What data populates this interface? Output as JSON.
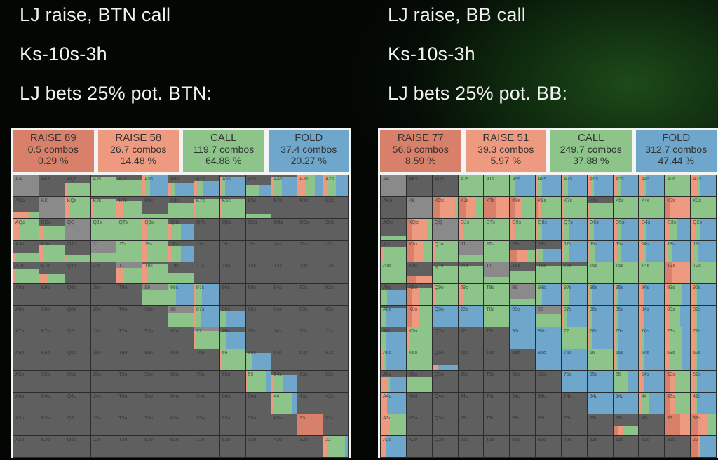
{
  "colors": {
    "raise_big": "#d9806a",
    "raise_small": "#ee9a80",
    "call": "#8cc48a",
    "fold": "#6fa6cc",
    "empty": "#5f5f5f",
    "pair": "#8a8a8a"
  },
  "left": {
    "title1": "LJ raise, BTN call",
    "title2": "Ks-10s-3h",
    "title3": "LJ bets 25% pot. BTN:",
    "legend": [
      {
        "name": "RAISE 89",
        "combos": "0.5 combos",
        "pct": "0.29 %",
        "color": "#d9806a"
      },
      {
        "name": "RAISE 58",
        "combos": "26.7 combos",
        "pct": "14.48 %",
        "color": "#ee9a80"
      },
      {
        "name": "CALL",
        "combos": "119.7 combos",
        "pct": "64.88 %",
        "color": "#8cc48a"
      },
      {
        "name": "FOLD",
        "combos": "37.4 combos",
        "pct": "20.27 %",
        "color": "#6fa6cc"
      }
    ]
  },
  "right": {
    "title1": "LJ raise, BB call",
    "title2": "Ks-10s-3h",
    "title3": "LJ bets 25% pot. BB:",
    "legend": [
      {
        "name": "RAISE 77",
        "combos": "56.6 combos",
        "pct": "8.59 %",
        "color": "#d9806a"
      },
      {
        "name": "RAISE 51",
        "combos": "39.3 combos",
        "pct": "5.97 %",
        "color": "#ee9a80"
      },
      {
        "name": "CALL",
        "combos": "249.7 combos",
        "pct": "37.88 %",
        "color": "#8cc48a"
      },
      {
        "name": "FOLD",
        "combos": "312.7 combos",
        "pct": "47.44 %",
        "color": "#6fa6cc"
      }
    ]
  },
  "ranks": [
    "A",
    "K",
    "Q",
    "J",
    "T",
    "9",
    "8",
    "7",
    "6",
    "5",
    "4",
    "3",
    "2"
  ],
  "cells": {
    "left": {
      "AKs": [
        0,
        0,
        0,
        0,
        0
      ],
      "AQs": [
        0.65,
        0,
        0.08,
        0.92,
        0
      ],
      "AJs": [
        0.9,
        0,
        0,
        1,
        0
      ],
      "ATs": [
        0.8,
        0,
        0,
        1,
        0
      ],
      "A9s": [
        1,
        0,
        0.1,
        0.2,
        0.7
      ],
      "A8s": [
        0.65,
        0,
        0.1,
        0.15,
        0.75
      ],
      "A7s": [
        0.75,
        0,
        0.1,
        0.25,
        0.65
      ],
      "A6s": [
        0.9,
        0,
        0.1,
        0.1,
        0.8
      ],
      "A5s": [
        0.55,
        0,
        0,
        0.5,
        0.5
      ],
      "A4s": [
        0.9,
        0,
        0.1,
        0.3,
        0.6
      ],
      "A3s": [
        1,
        0,
        0.3,
        0.4,
        0.3
      ],
      "A2s": [
        1,
        0,
        0.2,
        0.3,
        0.5
      ],
      "AKo": [
        0.3,
        0,
        0.6,
        0.4,
        0
      ],
      "KQs": [
        1,
        0,
        0.2,
        0.8,
        0
      ],
      "KJs": [
        0.9,
        0,
        0.1,
        0.9,
        0
      ],
      "KTs": [
        0.85,
        0,
        0.25,
        0.75,
        0
      ],
      "K9s": [
        0.2,
        0,
        0,
        1,
        0
      ],
      "K8s": [
        0.75,
        0,
        0,
        1,
        0
      ],
      "K7s": [
        0.9,
        0,
        0.05,
        0.95,
        0
      ],
      "K6s": [
        0.9,
        0,
        0.05,
        0.95,
        0
      ],
      "K5s": [
        0.2,
        0,
        0,
        1,
        0
      ],
      "AQo": [
        1,
        0,
        0.25,
        0.75,
        0
      ],
      "KQo": [
        0.65,
        0,
        0.2,
        0.8,
        0
      ],
      "QJs": [
        1,
        0,
        0.05,
        0.95,
        0
      ],
      "QTs": [
        1,
        0,
        0,
        1,
        0
      ],
      "Q9s": [
        1,
        0,
        0.2,
        0.8,
        0
      ],
      "Q8s": [
        0.75,
        0,
        0.1,
        0.4,
        0.5
      ],
      "AJo": [
        0.4,
        0,
        0.1,
        0.9,
        0
      ],
      "KJo": [
        0.8,
        0,
        0.15,
        0.85,
        0
      ],
      "QJo": [
        0.3,
        0,
        0.1,
        0.9,
        0
      ],
      "JJ": [
        0.4,
        0,
        0,
        1,
        0
      ],
      "JTs": [
        1,
        0,
        0,
        1,
        0
      ],
      "J9s": [
        1,
        0,
        0.2,
        0.8,
        0
      ],
      "J8s": [
        0.75,
        0,
        0.1,
        0.4,
        0.5
      ],
      "ATo": [
        0.7,
        0,
        0.05,
        0.95,
        0
      ],
      "KTo": [
        0.45,
        0,
        0.3,
        0.7,
        0
      ],
      "TT": [
        0.75,
        0,
        0.3,
        0.7,
        0
      ],
      "T9s": [
        0.9,
        0,
        0.15,
        0.85,
        0
      ],
      "T8s": [
        0.5,
        0,
        0,
        1,
        0
      ],
      "99": [
        0.75,
        0,
        0,
        1,
        0
      ],
      "98s": [
        1,
        0,
        0,
        0.3,
        0.7
      ],
      "97s": [
        1,
        0,
        0.05,
        0.25,
        0.7
      ],
      "88": [
        0.65,
        0,
        0,
        1,
        0
      ],
      "87s": [
        1,
        0,
        0.05,
        0.2,
        0.75
      ],
      "86s": [
        0.75,
        0,
        0,
        0.25,
        0.75
      ],
      "77": [
        0.85,
        0,
        0.08,
        0.92,
        0
      ],
      "76s": [
        0.8,
        0,
        0,
        0.25,
        0.75
      ],
      "66": [
        1,
        0,
        0.08,
        0.92,
        0
      ],
      "65s": [
        0.8,
        0,
        0,
        0.25,
        0.75
      ],
      "55": [
        1,
        0,
        0.05,
        0.75,
        0.2
      ],
      "54s": [
        0.8,
        0,
        0.1,
        0.35,
        0.55
      ],
      "44": [
        1,
        0,
        0.05,
        0.75,
        0.2
      ],
      "33": [
        1,
        1,
        0,
        0,
        0
      ],
      "22": [
        1,
        0,
        0.15,
        0.7,
        0.15
      ]
    },
    "right": {
      "AJs": [
        1,
        0,
        0,
        1,
        0
      ],
      "ATs": [
        1,
        0,
        0,
        1,
        0
      ],
      "A9s": [
        1,
        0,
        0,
        0.2,
        0.8
      ],
      "A8s": [
        1,
        0,
        0.1,
        0.15,
        0.75
      ],
      "A7s": [
        1,
        0,
        0.1,
        0.15,
        0.75
      ],
      "A6s": [
        1,
        0,
        0.15,
        0.1,
        0.75
      ],
      "A5s": [
        1,
        0,
        0.2,
        0.1,
        0.7
      ],
      "A4s": [
        1,
        0,
        0.2,
        0.1,
        0.7
      ],
      "A3s": [
        1,
        0,
        0,
        1,
        0
      ],
      "A2s": [
        1,
        0,
        0.25,
        0.15,
        0.6
      ],
      "KQs": [
        1,
        0.3,
        0.6,
        0.1,
        0
      ],
      "KJs": [
        1,
        0.3,
        0.4,
        0.3,
        0
      ],
      "KTs": [
        1,
        0.5,
        0.5,
        0,
        0
      ],
      "K9s": [
        1,
        0.2,
        0.3,
        0.5,
        0
      ],
      "K8s": [
        1,
        0.1,
        0.1,
        0.8,
        0
      ],
      "K7s": [
        1,
        0,
        0.1,
        0.9,
        0
      ],
      "K6s": [
        0.75,
        0,
        0.05,
        0.95,
        0
      ],
      "K5s": [
        1,
        0,
        0,
        1,
        0
      ],
      "K4s": [
        1,
        0,
        0,
        1,
        0
      ],
      "K3s": [
        1,
        0.2,
        0.8,
        0,
        0
      ],
      "K2s": [
        1,
        0,
        0,
        1,
        0
      ],
      "AQo": [
        0.2,
        0,
        0,
        1,
        0
      ],
      "KQo": [
        1,
        0.2,
        0.6,
        0.2,
        0
      ],
      "QJs": [
        1,
        0,
        0.2,
        0.8,
        0
      ],
      "QTs": [
        1,
        0,
        0,
        1,
        0
      ],
      "Q9s": [
        1,
        0,
        0.2,
        0.8,
        0
      ],
      "Q8s": [
        1,
        0,
        0.05,
        0.2,
        0.75
      ],
      "Q7s": [
        1,
        0,
        0.1,
        0.2,
        0.7
      ],
      "Q6s": [
        1,
        0,
        0.1,
        0.15,
        0.75
      ],
      "Q5s": [
        1,
        0,
        0.15,
        0.15,
        0.7
      ],
      "Q4s": [
        1,
        0,
        0.2,
        0.1,
        0.7
      ],
      "Q3s": [
        1,
        0,
        0.2,
        0.3,
        0.5
      ],
      "Q2s": [
        1,
        0,
        0.15,
        0.2,
        0.65
      ],
      "AJo": [
        0.7,
        0,
        0.1,
        0.9,
        0
      ],
      "KJo": [
        1,
        0.3,
        0.4,
        0.3,
        0
      ],
      "QJo": [
        1,
        0,
        0.1,
        0.9,
        0
      ],
      "JJ": [
        0.3,
        0,
        0,
        1,
        0
      ],
      "JTs": [
        1,
        0,
        0,
        1,
        0
      ],
      "J9s": [
        0.55,
        0.3,
        0.4,
        0.3,
        0
      ],
      "J8s": [
        0.6,
        0,
        0.1,
        0.2,
        0.7
      ],
      "J7s": [
        1,
        0,
        0.1,
        0.2,
        0.7
      ],
      "J6s": [
        1,
        0,
        0.1,
        0.2,
        0.7
      ],
      "J5s": [
        1,
        0,
        0.15,
        0.15,
        0.7
      ],
      "J4s": [
        1,
        0,
        0.2,
        0.1,
        0.7
      ],
      "J3s": [
        1,
        0,
        0.1,
        0.2,
        0.7
      ],
      "J2s": [
        1,
        0,
        0.1,
        0.2,
        0.7
      ],
      "ATo": [
        1,
        0,
        0,
        1,
        0
      ],
      "KTo": [
        0.35,
        0.4,
        0.6,
        0,
        0
      ],
      "QTo": [
        0.85,
        0,
        0,
        1,
        0
      ],
      "JTo": [
        0.85,
        0,
        0,
        1,
        0
      ],
      "TT": [
        0.3,
        0,
        0,
        1,
        0
      ],
      "T9s": [
        0.6,
        0,
        0,
        1,
        0
      ],
      "T8s": [
        0.85,
        0,
        0,
        1,
        0
      ],
      "T7s": [
        0.85,
        0,
        0,
        1,
        0
      ],
      "T6s": [
        1,
        0,
        0,
        1,
        0
      ],
      "T5s": [
        1,
        0,
        0,
        1,
        0
      ],
      "T4s": [
        1,
        0,
        0,
        1,
        0
      ],
      "T3s": [
        1,
        0.3,
        0.7,
        0,
        0
      ],
      "T2s": [
        1,
        0,
        0,
        1,
        0
      ],
      "A9o": [
        0.7,
        0,
        0,
        0.25,
        0.75
      ],
      "K9o": [
        0.8,
        0.2,
        0.3,
        0.5,
        0
      ],
      "Q9o": [
        1,
        0,
        0.15,
        0.85,
        0
      ],
      "J9o": [
        1,
        0,
        0.2,
        0.8,
        0
      ],
      "T9o": [
        1,
        0,
        0,
        1,
        0
      ],
      "99": [
        0.3,
        0,
        0,
        1,
        0
      ],
      "98s": [
        1,
        0,
        0,
        0.25,
        0.75
      ],
      "97s": [
        1,
        0,
        0.1,
        0.2,
        0.7
      ],
      "96s": [
        1,
        0,
        0.1,
        0.1,
        0.8
      ],
      "95s": [
        1,
        0,
        0.1,
        0.1,
        0.8
      ],
      "94s": [
        1,
        0,
        0.15,
        0.05,
        0.8
      ],
      "93s": [
        1,
        0,
        0.2,
        0.5,
        0.3
      ],
      "92s": [
        1,
        0,
        0.15,
        0.1,
        0.75
      ],
      "A8o": [
        0.9,
        0,
        0,
        0.2,
        0.8
      ],
      "K8o": [
        1,
        0.2,
        0.3,
        0.5,
        0
      ],
      "Q8o": [
        1,
        0,
        0,
        0,
        1
      ],
      "J8o": [
        1,
        0,
        0,
        0,
        1
      ],
      "T8o": [
        1,
        0,
        0,
        1,
        0
      ],
      "98o": [
        1,
        0,
        0,
        0,
        1
      ],
      "88": [
        0.6,
        0,
        0,
        1,
        0
      ],
      "87s": [
        1,
        0,
        0.1,
        0.1,
        0.8
      ],
      "86s": [
        1,
        0,
        0.1,
        0.1,
        0.8
      ],
      "85s": [
        1,
        0,
        0.1,
        0.1,
        0.8
      ],
      "84s": [
        1,
        0,
        0.15,
        0.05,
        0.8
      ],
      "83s": [
        1,
        0,
        0.2,
        0.4,
        0.4
      ],
      "82s": [
        1,
        0,
        0.15,
        0.1,
        0.75
      ],
      "A7o": [
        0.8,
        0,
        0.05,
        0.15,
        0.8
      ],
      "K7o": [
        1,
        0,
        0.15,
        0.85,
        0
      ],
      "97o": [
        1,
        0,
        0,
        0,
        1
      ],
      "87o": [
        1,
        0,
        0,
        0,
        1
      ],
      "77": [
        1,
        0,
        0,
        1,
        0
      ],
      "76s": [
        1,
        0,
        0.05,
        0.15,
        0.8
      ],
      "75s": [
        1,
        0,
        0.1,
        0.1,
        0.8
      ],
      "74s": [
        1,
        0,
        0.1,
        0.1,
        0.8
      ],
      "73s": [
        1,
        0,
        0.2,
        0.5,
        0.3
      ],
      "72s": [
        1,
        0,
        0.15,
        0.1,
        0.75
      ],
      "A6o": [
        1,
        0,
        0.1,
        0.1,
        0.8
      ],
      "K6o": [
        1,
        0,
        0,
        1,
        0
      ],
      "Q6o": [
        0.25,
        0,
        0.2,
        0,
        0.8
      ],
      "96o": [
        0.05,
        0,
        0,
        0,
        1
      ],
      "86o": [
        1,
        0,
        0,
        0,
        1
      ],
      "76o": [
        1,
        0,
        0,
        0,
        1
      ],
      "66": [
        1,
        0,
        0,
        1,
        0
      ],
      "65s": [
        1,
        0,
        0.1,
        0.1,
        0.8
      ],
      "64s": [
        1,
        0,
        0.1,
        0.1,
        0.8
      ],
      "63s": [
        1,
        0,
        0.2,
        0.5,
        0.3
      ],
      "62s": [
        1,
        0,
        0.15,
        0.1,
        0.75
      ],
      "A5o": [
        0.75,
        0,
        0.25,
        0.1,
        0.65
      ],
      "K5o": [
        0.75,
        0,
        0,
        1,
        0
      ],
      "75o": [
        1,
        0,
        0,
        0,
        1
      ],
      "65o": [
        1,
        0,
        0,
        0,
        1
      ],
      "55": [
        1,
        0,
        0,
        0.6,
        0.4
      ],
      "54s": [
        1,
        0,
        0.15,
        0.05,
        0.8
      ],
      "53s": [
        1,
        0.2,
        0.2,
        0.6,
        0
      ],
      "52s": [
        1,
        0,
        0.15,
        0.1,
        0.75
      ],
      "A4o": [
        1,
        0,
        0.25,
        0,
        0.75
      ],
      "64o": [
        1,
        0,
        0,
        0,
        1
      ],
      "54o": [
        1,
        0,
        0,
        0,
        1
      ],
      "44": [
        1,
        0,
        0.1,
        0.3,
        0.6
      ],
      "43s": [
        1,
        0.2,
        0.2,
        0.6,
        0
      ],
      "42s": [
        1,
        0,
        0.15,
        0.1,
        0.75
      ],
      "A3o": [
        1,
        0,
        0.35,
        0.65,
        0
      ],
      "53o": [
        0.45,
        0.2,
        0.2,
        0.6,
        0
      ],
      "33": [
        1,
        0.6,
        0.4,
        0,
        0
      ],
      "32s": [
        1,
        0.3,
        0.4,
        0.3,
        0
      ],
      "A2o": [
        1,
        0,
        0.2,
        0,
        0.8
      ],
      "22": [
        1,
        0.3,
        0.1,
        0,
        0.6
      ]
    }
  }
}
